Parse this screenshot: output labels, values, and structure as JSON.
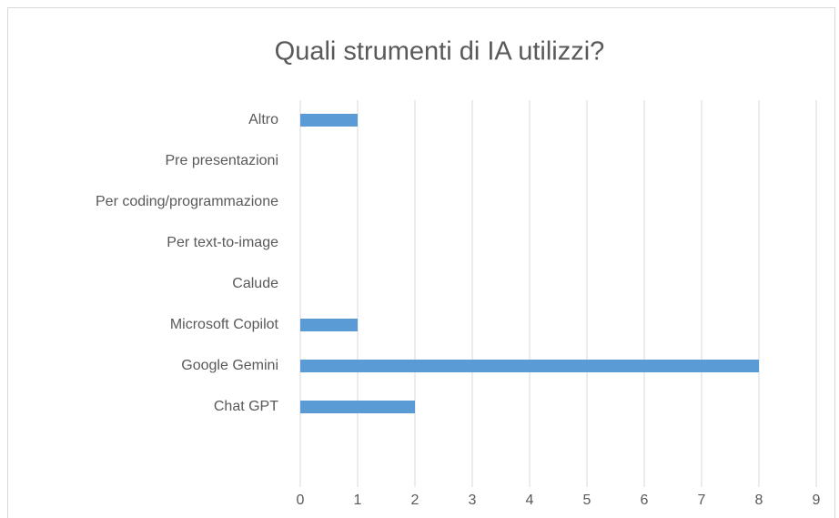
{
  "chart_data": {
    "type": "bar",
    "orientation": "horizontal",
    "title": "Quali strumenti di IA utilizzi?",
    "categories": [
      "Altro",
      "Pre presentazioni",
      "Per coding/programmazione",
      "Per text-to-image",
      "Calude",
      "Microsoft Copilot",
      "Google Gemini",
      "Chat GPT"
    ],
    "values": [
      1,
      0,
      0,
      0,
      0,
      1,
      8,
      2
    ],
    "color": "#5b9bd5",
    "xlim": [
      0,
      9
    ],
    "xticks": [
      0,
      1,
      2,
      3,
      4,
      5,
      6,
      7,
      8,
      9
    ],
    "grid": true
  }
}
